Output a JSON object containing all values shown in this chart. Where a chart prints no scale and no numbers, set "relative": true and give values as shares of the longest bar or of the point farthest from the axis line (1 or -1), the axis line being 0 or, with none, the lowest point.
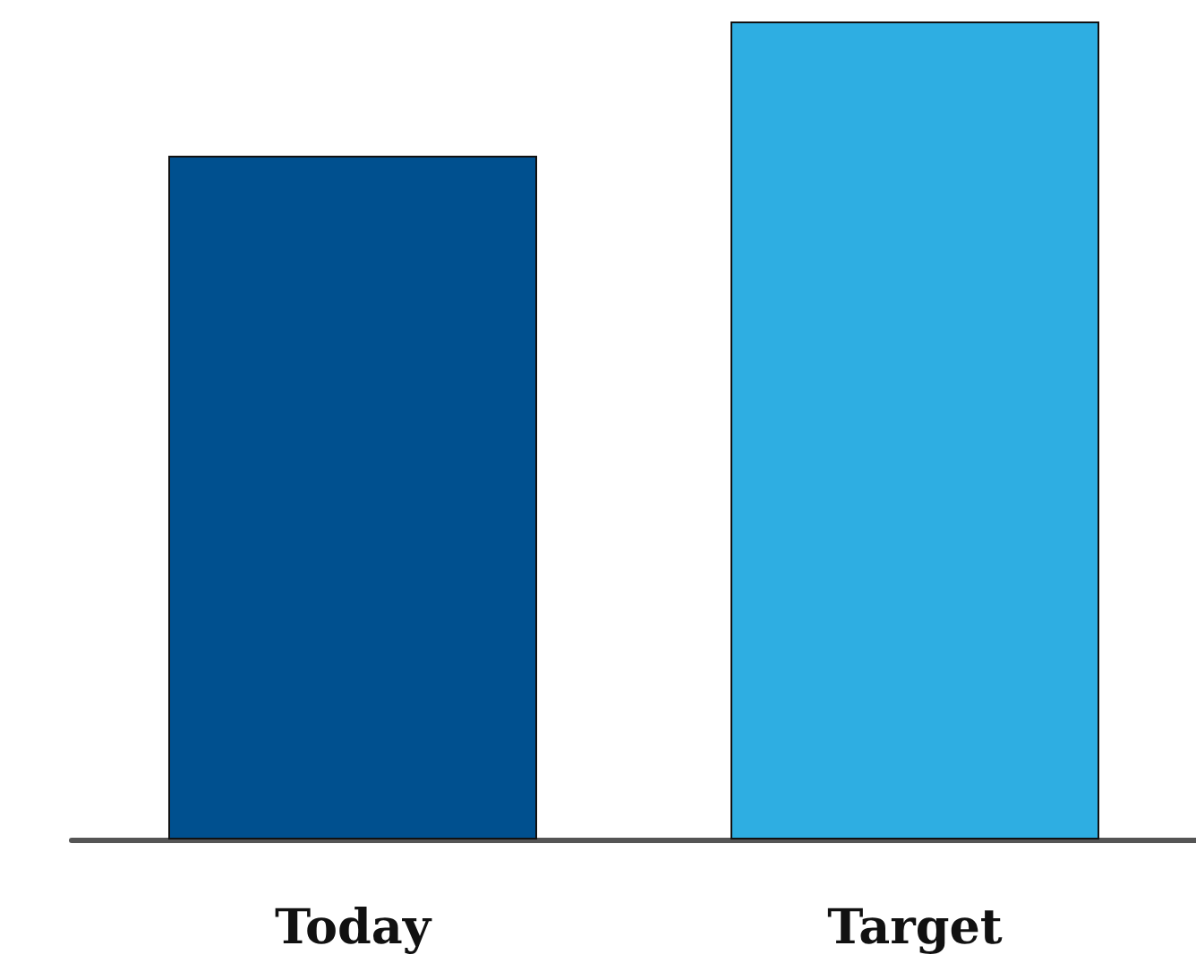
{
  "chart_data": {
    "type": "bar",
    "relative": true,
    "categories": [
      "Today",
      "Target"
    ],
    "values": [
      0.836,
      1
    ],
    "colors": [
      "#00508f",
      "#2eaee2"
    ],
    "grid": false
  }
}
